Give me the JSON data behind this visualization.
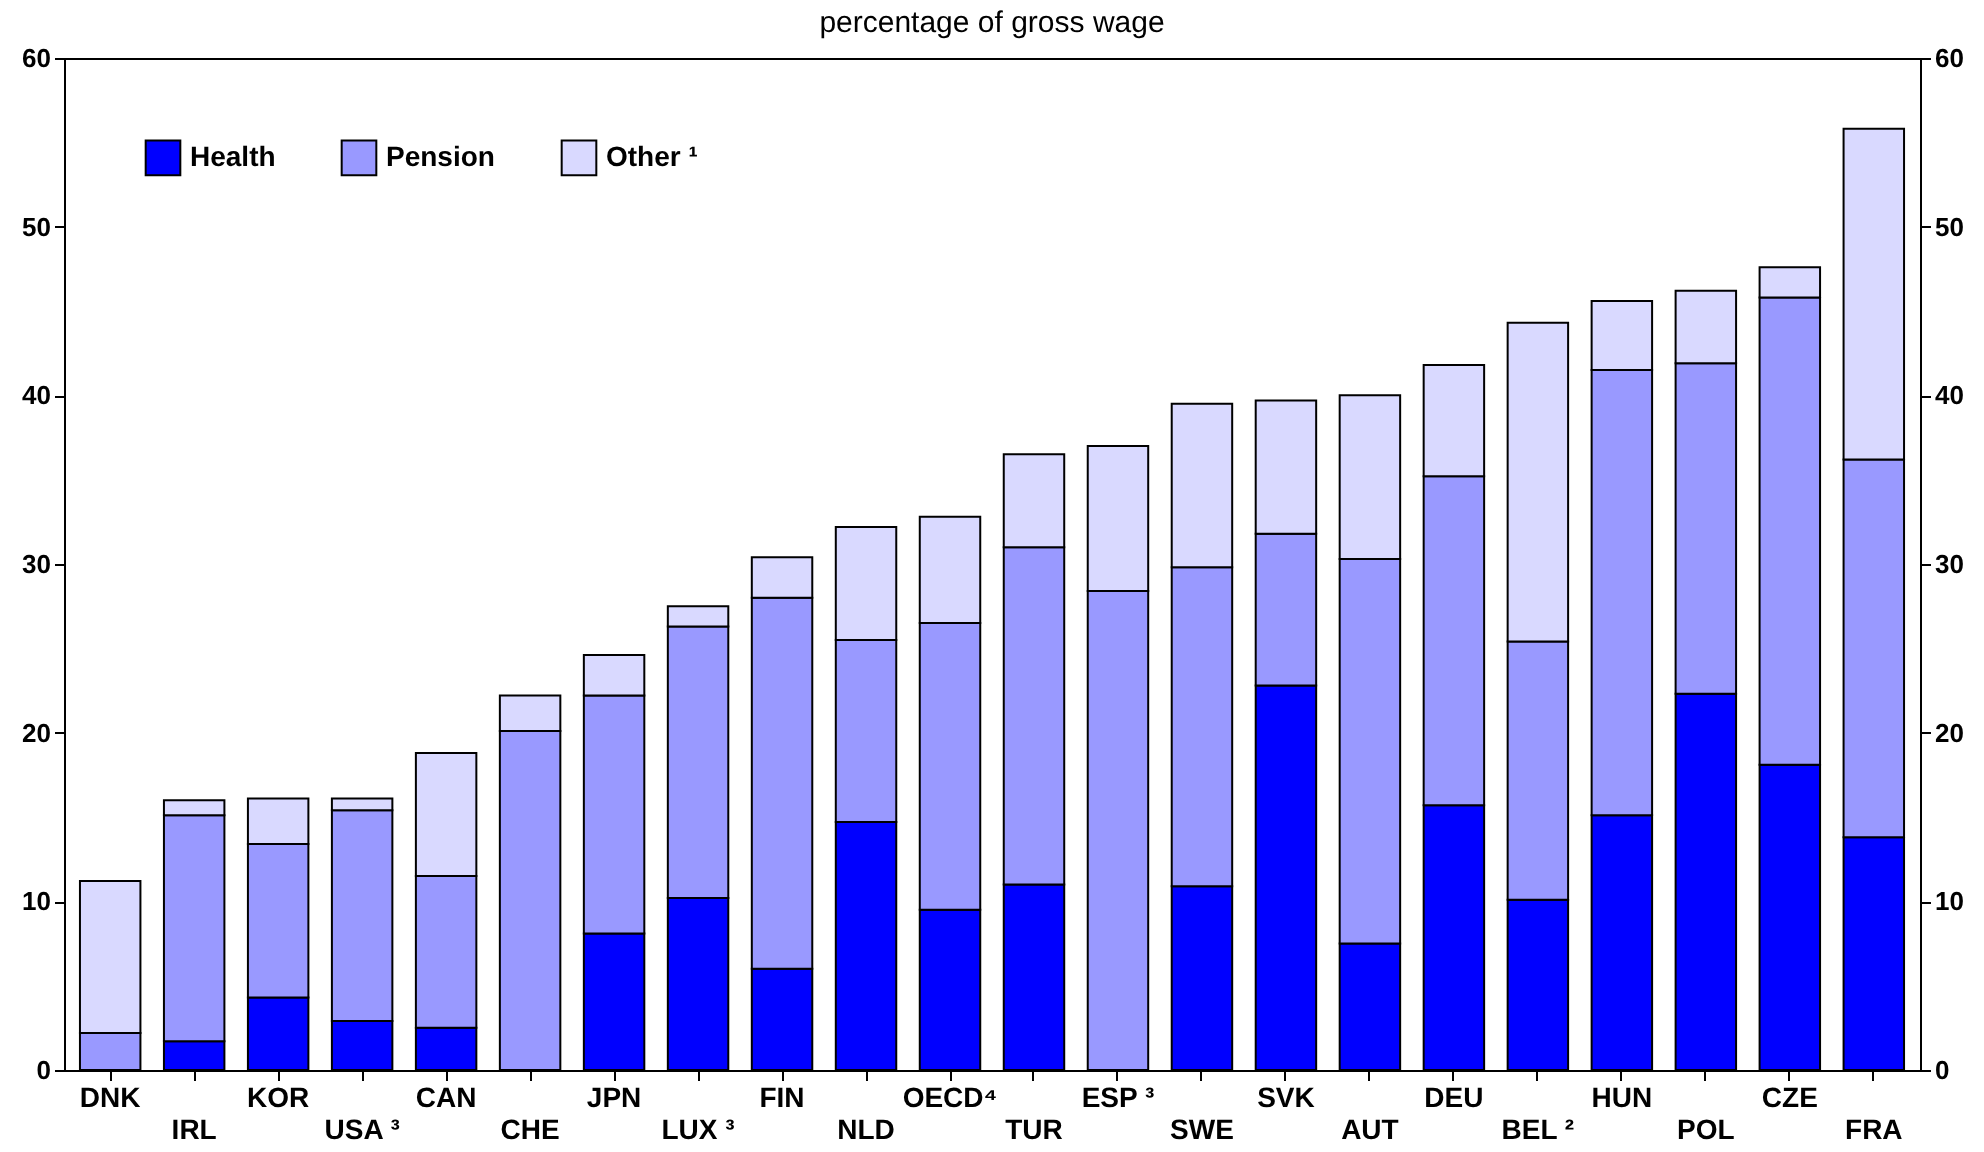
{
  "chart_data": {
    "type": "bar",
    "title": "percentage of gross wage",
    "stacked": true,
    "legend": "top left",
    "categories": [
      "DNK",
      "IRL",
      "KOR",
      "USA ³",
      "CAN",
      "CHE",
      "JPN",
      "LUX ³",
      "FIN",
      "NLD",
      "OECD⁴",
      "TUR",
      "ESP ³",
      "SWE",
      "SVK",
      "AUT",
      "DEU",
      "BEL ²",
      "HUN",
      "POL",
      "CZE",
      "FRA"
    ],
    "series": [
      {
        "name": "Health",
        "color": "#0000ff",
        "values": [
          0,
          1.7,
          4.3,
          2.9,
          2.5,
          0,
          8.1,
          10.2,
          6.0,
          14.7,
          9.5,
          11.0,
          0,
          10.9,
          22.8,
          7.5,
          15.7,
          10.1,
          15.1,
          22.3,
          18.1,
          13.8
        ]
      },
      {
        "name": "Pension",
        "color": "#9999ff",
        "values": [
          2.2,
          13.4,
          9.1,
          12.5,
          9.0,
          20.1,
          14.1,
          16.1,
          22.0,
          10.8,
          17.0,
          20.0,
          28.4,
          18.9,
          9.0,
          22.8,
          19.5,
          15.3,
          26.4,
          19.6,
          27.7,
          22.4
        ]
      },
      {
        "name": "Other ¹",
        "color": "#d9d9ff",
        "values": [
          9.0,
          0.9,
          2.7,
          0.7,
          7.3,
          2.1,
          2.4,
          1.2,
          2.4,
          6.7,
          6.3,
          5.5,
          8.6,
          9.7,
          7.9,
          9.7,
          6.6,
          18.9,
          4.1,
          4.3,
          1.8,
          19.6
        ]
      }
    ],
    "ylim": [
      0,
      60
    ],
    "yticks": [
      0,
      10,
      20,
      30,
      40,
      50,
      60
    ],
    "y2lim": [
      0,
      60
    ],
    "y2ticks": [
      0,
      10,
      20,
      30,
      40,
      50,
      60
    ],
    "grid": false
  }
}
